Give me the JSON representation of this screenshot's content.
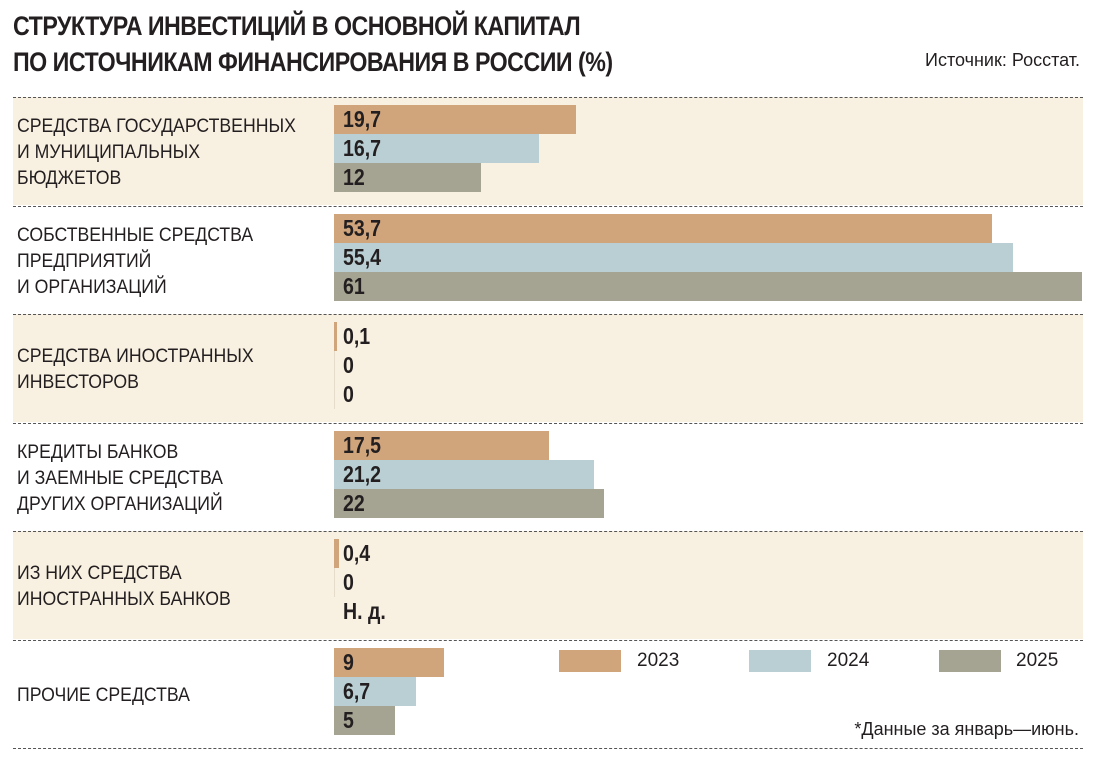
{
  "header": {
    "title_line1": "СТРУКТУРА ИНВЕСТИЦИЙ В ОСНОВНОЙ КАПИТАЛ",
    "title_line2": "ПО ИСТОЧНИКАМ ФИНАНСИРОВАНИЯ В РОССИИ (%)",
    "source": "Источник: Росстат."
  },
  "footnote": "*Данные за январь—июнь.",
  "colors": {
    "2023": "#d1a57c",
    "2024": "#b9cfd3",
    "2025": "#a5a392",
    "shaded_bg": "#f8f0e1"
  },
  "chart_data": {
    "type": "bar",
    "orientation": "horizontal",
    "title": "СТРУКТУРА ИНВЕСТИЦИЙ В ОСНОВНОЙ КАПИТАЛ ПО ИСТОЧНИКАМ ФИНАНСИРОВАНИЯ В РОССИИ (%)",
    "xlabel": "",
    "ylabel": "",
    "xlim": [
      0,
      61
    ],
    "grid": false,
    "legend_position": "bottom-right",
    "categories": [
      [
        "СРЕДСТВА ГОСУДАРСТВЕННЫХ",
        "И МУНИЦИПАЛЬНЫХ",
        "БЮДЖЕТОВ"
      ],
      [
        "СОБСТВЕННЫЕ СРЕДСТВА",
        "ПРЕДПРИЯТИЙ",
        "И ОРГАНИЗАЦИЙ"
      ],
      [
        "СРЕДСТВА ИНОСТРАННЫХ",
        "ИНВЕСТОРОВ"
      ],
      [
        "КРЕДИТЫ БАНКОВ",
        "И ЗАЕМНЫЕ СРЕДСТВА",
        "ДРУГИХ ОРГАНИЗАЦИЙ"
      ],
      [
        "ИЗ НИХ СРЕДСТВА",
        "ИНОСТРАННЫХ БАНКОВ"
      ],
      [
        "ПРОЧИЕ СРЕДСТВА"
      ]
    ],
    "series": [
      {
        "name": "2023",
        "values": [
          19.7,
          53.7,
          0.1,
          17.5,
          0.4,
          9
        ],
        "labels": [
          "19,7",
          "53,7",
          "0,1",
          "17,5",
          "0,4",
          "9"
        ]
      },
      {
        "name": "2024",
        "values": [
          16.7,
          55.4,
          0,
          21.2,
          0,
          6.7
        ],
        "labels": [
          "16,7",
          "55,4",
          "0",
          "21,2",
          "0",
          "6,7"
        ]
      },
      {
        "name": "2025",
        "values": [
          12,
          61,
          0,
          22,
          null,
          5
        ],
        "labels": [
          "12",
          "61",
          "0",
          "22",
          "Н. д.",
          "5"
        ]
      }
    ],
    "legend": [
      "2023",
      "2024",
      "2025"
    ],
    "source": "Источник: Росстат.",
    "annotation": "*Данные за январь—июнь."
  }
}
